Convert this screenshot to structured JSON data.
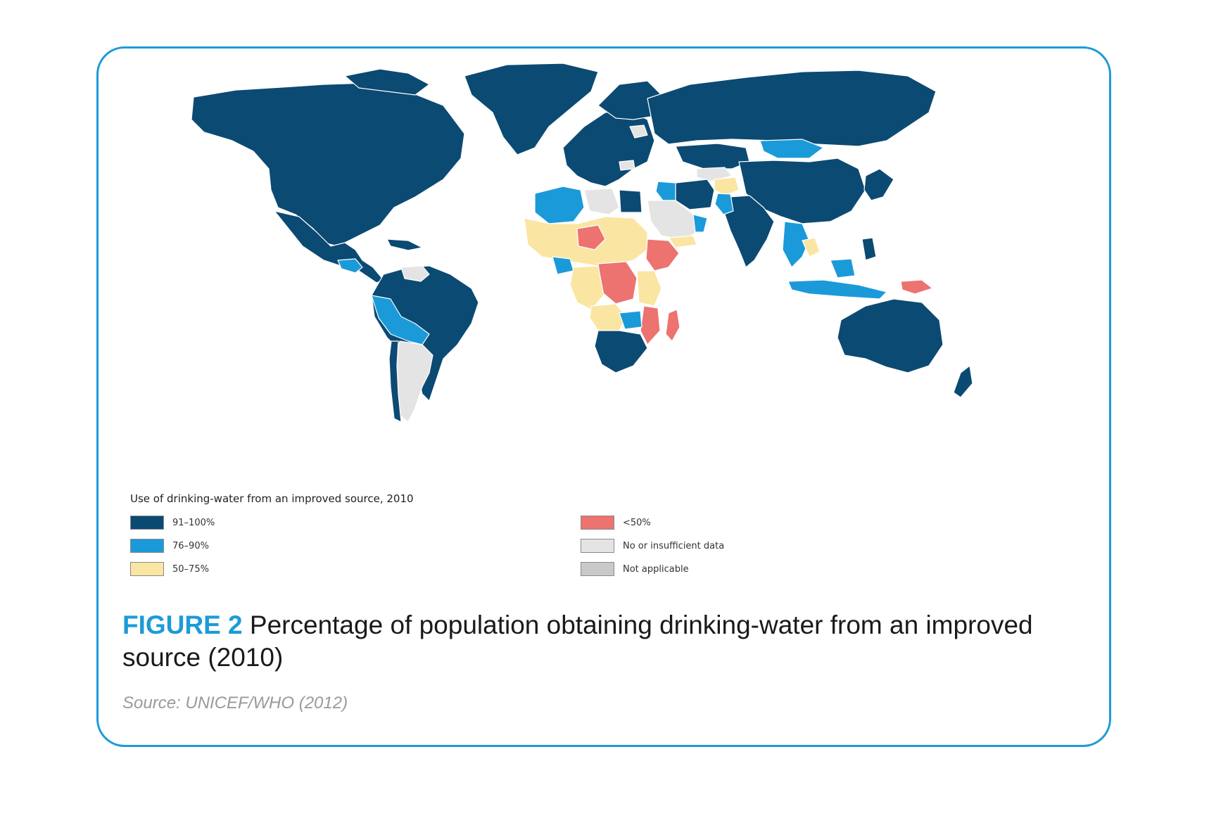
{
  "legend": {
    "title": "Use of drinking-water from an improved source, 2010",
    "items": [
      {
        "label": "91–100%",
        "color": "#0b4a73"
      },
      {
        "label": "76–90%",
        "color": "#1b9ad9"
      },
      {
        "label": "50–75%",
        "color": "#fbe5a3"
      },
      {
        "label": "<50%",
        "color": "#ec7370"
      },
      {
        "label": "No or insufficient data",
        "color": "#e4e4e4"
      },
      {
        "label": "Not applicable",
        "color": "#c9c9c9"
      }
    ]
  },
  "caption": {
    "figure_label": "FIGURE 2",
    "text": "Percentage of population obtaining drinking-water from an improved source (2010)"
  },
  "source": "Source: UNICEF/WHO (2012)",
  "map_colors": {
    "dark": "#0b4a73",
    "mid": "#1b9ad9",
    "light": "#fbe5a3",
    "red": "#ec7370",
    "nodata": "#e4e4e4",
    "na": "#c9c9c9",
    "border": "#ffffff"
  }
}
